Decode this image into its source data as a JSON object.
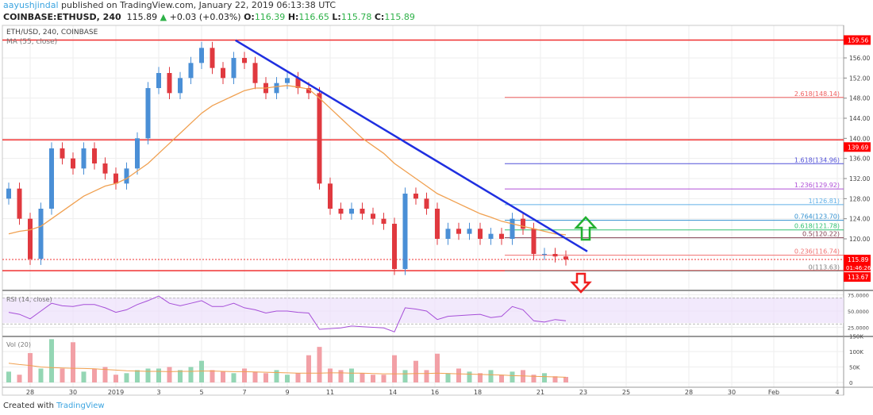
{
  "header": {
    "user": "aayushjindal",
    "published": "published on TradingView.com, January 22, 2019 06:13:38 UTC",
    "symbol": "COINBASE:ETHUSD, 240",
    "last": "115.89",
    "change": "+0.03 (+0.03%)",
    "o_label": "O:",
    "o": "116.39",
    "h_label": "H:",
    "h": "116.65",
    "l_label": "L:",
    "l": "115.78",
    "c_label": "C:",
    "c": "115.89"
  },
  "legend": {
    "title": "ETH/USD, 240, COINBASE",
    "ma": "MA (55, close)",
    "rsi": "RSI (14, close)",
    "vol": "Vol (20)"
  },
  "footer": {
    "created": "Created with",
    "brand": "TradingView"
  },
  "colors": {
    "up": "#4a8fd6",
    "down": "#e0393f",
    "vol_up": "#94d6b4",
    "vol_down": "#f2a0a6",
    "ma": "#f0a050",
    "trend": "#1f2fe0",
    "rsi": "#a64fd8",
    "level": "#f03030",
    "arrow_up": "#22b030",
    "arrow_down": "#f02020"
  },
  "chart_data": {
    "type": "candlestick",
    "price_axis": {
      "ticks": [
        "156.00",
        "152.00",
        "148.00",
        "144.00",
        "140.00",
        "136.00",
        "132.00",
        "128.00",
        "124.00",
        "120.00"
      ],
      "range": [
        110,
        163
      ]
    },
    "time_axis": {
      "ticks": [
        "28",
        "30",
        "2019",
        "3",
        "5",
        "7",
        "9",
        "11",
        "14",
        "16",
        "18",
        "21",
        "23",
        "25",
        "28",
        "30",
        "Feb",
        "4"
      ]
    },
    "series": {
      "time": [
        "2018-12-27 00:00",
        "2018-12-27 12:00",
        "2018-12-28 00:00",
        "2018-12-28 12:00",
        "2018-12-29 00:00",
        "2018-12-29 12:00",
        "2018-12-30 00:00",
        "2018-12-30 12:00",
        "2018-12-31 00:00",
        "2018-12-31 12:00",
        "2019-01-01 00:00",
        "2019-01-01 12:00",
        "2019-01-02 00:00",
        "2019-01-02 12:00",
        "2019-01-03 00:00",
        "2019-01-03 12:00",
        "2019-01-04 00:00",
        "2019-01-04 12:00",
        "2019-01-05 00:00",
        "2019-01-05 12:00",
        "2019-01-06 00:00",
        "2019-01-06 12:00",
        "2019-01-07 00:00",
        "2019-01-07 12:00",
        "2019-01-08 00:00",
        "2019-01-08 12:00",
        "2019-01-09 00:00",
        "2019-01-09 12:00",
        "2019-01-10 00:00",
        "2019-01-10 12:00",
        "2019-01-11 00:00",
        "2019-01-11 12:00",
        "2019-01-12 00:00",
        "2019-01-12 12:00",
        "2019-01-13 00:00",
        "2019-01-13 12:00",
        "2019-01-14 00:00",
        "2019-01-14 12:00",
        "2019-01-15 00:00",
        "2019-01-15 12:00",
        "2019-01-16 00:00",
        "2019-01-16 12:00",
        "2019-01-17 00:00",
        "2019-01-17 12:00",
        "2019-01-18 00:00",
        "2019-01-18 12:00",
        "2019-01-19 00:00",
        "2019-01-19 12:00",
        "2019-01-20 00:00",
        "2019-01-20 12:00",
        "2019-01-21 00:00",
        "2019-01-21 12:00",
        "2019-01-22 00:00"
      ],
      "close": [
        130,
        124,
        116,
        126,
        138,
        136,
        134,
        138,
        135,
        133,
        131,
        134,
        140,
        150,
        153,
        149,
        152,
        155,
        158,
        154,
        152,
        156,
        155,
        151,
        149,
        151,
        152,
        150,
        149,
        131,
        126,
        125,
        126,
        125,
        124,
        123,
        114,
        129,
        128,
        126,
        120,
        122,
        121,
        122,
        120,
        121,
        120,
        124,
        122,
        117,
        117,
        116.5,
        115.89
      ],
      "ma55": [
        121,
        121.5,
        121.8,
        122.5,
        124,
        125.5,
        127,
        128.5,
        129.5,
        130.5,
        131,
        132,
        133.5,
        135,
        137,
        139,
        141,
        143,
        145,
        146.5,
        147.5,
        148.5,
        149.5,
        150,
        150,
        150.3,
        150.5,
        150.2,
        149.8,
        148,
        146,
        144,
        142,
        140,
        138.5,
        137,
        135,
        133.5,
        132,
        130.5,
        129,
        128,
        127,
        126,
        125,
        124.3,
        123.5,
        123,
        122.5,
        122,
        121.5,
        121,
        120.8
      ],
      "rsi": [
        48,
        45,
        38,
        50,
        62,
        58,
        57,
        60,
        60,
        55,
        48,
        52,
        60,
        66,
        73,
        62,
        58,
        62,
        66,
        57,
        57,
        62,
        55,
        52,
        47,
        50,
        50,
        48,
        47,
        22,
        23,
        24,
        27,
        26,
        25,
        24,
        18,
        55,
        53,
        50,
        37,
        42,
        43,
        44,
        45,
        40,
        42,
        57,
        52,
        35,
        33,
        37,
        35
      ],
      "volume": [
        35,
        25,
        95,
        45,
        140,
        45,
        130,
        35,
        45,
        50,
        25,
        30,
        40,
        45,
        45,
        50,
        40,
        50,
        70,
        40,
        35,
        30,
        45,
        35,
        30,
        40,
        25,
        30,
        88,
        115,
        45,
        40,
        45,
        30,
        25,
        25,
        88,
        40,
        70,
        40,
        93,
        30,
        45,
        35,
        30,
        40,
        25,
        35,
        40,
        25,
        30,
        20,
        18
      ],
      "vol_ma": [
        62,
        58,
        55,
        50,
        48,
        47,
        46,
        45,
        44,
        42,
        40,
        38,
        37,
        36,
        36,
        35,
        36,
        36,
        37,
        37,
        36,
        35,
        35,
        34,
        33,
        32,
        31,
        30,
        30,
        30,
        31,
        31,
        30,
        30,
        29,
        28,
        28,
        28,
        29,
        29,
        30,
        29,
        28,
        27,
        26,
        25,
        24,
        22,
        21,
        20,
        19,
        18,
        17
      ]
    },
    "horizontal_levels": [
      159.56,
      139.69,
      113.67
    ],
    "current_price": {
      "value": "115.89",
      "countdown": "01:46:26"
    },
    "level_labels": [
      "159.56",
      "139.69",
      "113.67"
    ],
    "trendline": {
      "start": [
        "2019-01-06 14:00",
        159.5
      ],
      "end": [
        "2019-01-23 00:00",
        117.5
      ]
    },
    "fibonacci": [
      {
        "ratio": "2.618",
        "price": 148.14,
        "label": "2.618(148.14)",
        "color": "#f06060"
      },
      {
        "ratio": "1.618",
        "price": 134.96,
        "label": "1.618(134.96)",
        "color": "#5050d8"
      },
      {
        "ratio": "1.236",
        "price": 129.92,
        "label": "1.236(129.92)",
        "color": "#b050d8"
      },
      {
        "ratio": "1",
        "price": 126.81,
        "label": "1(126.81)",
        "color": "#60b0e8"
      },
      {
        "ratio": "0.764",
        "price": 123.7,
        "label": "0.764(123.70)",
        "color": "#3090d0"
      },
      {
        "ratio": "0.618",
        "price": 121.78,
        "label": "0.618(121.78)",
        "color": "#30c070"
      },
      {
        "ratio": "0.5",
        "price": 120.22,
        "label": "0.5(120.22)",
        "color": "#804050"
      },
      {
        "ratio": "0.236",
        "price": 116.74,
        "label": "0.236(116.74)",
        "color": "#f07070"
      },
      {
        "ratio": "0",
        "price": 113.63,
        "label": "0(113.63)",
        "color": "#808080"
      }
    ],
    "rsi_axis": {
      "ticks": [
        "75.0000",
        "50.0000",
        "25.0000"
      ],
      "band": [
        30,
        70
      ]
    },
    "vol_axis": {
      "ticks": [
        "150K",
        "100K",
        "50K",
        "0"
      ]
    }
  }
}
